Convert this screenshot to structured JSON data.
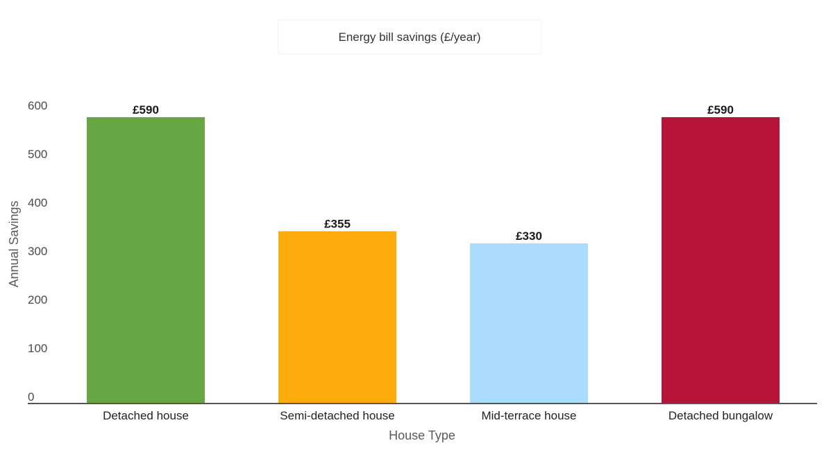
{
  "chart_data": {
    "type": "bar",
    "title": "Energy bill savings (£/year)",
    "xlabel": "House Type",
    "ylabel": "Annual Savings",
    "categories": [
      "Detached house",
      "Semi-detached house",
      "Mid-terrace house",
      "Detached bungalow"
    ],
    "values": [
      590,
      355,
      330,
      590
    ],
    "data_labels": [
      "£590",
      "£355",
      "£330",
      "£590"
    ],
    "colors": [
      "#66a644",
      "#fdab0d",
      "#abdcfd",
      "#b71338"
    ],
    "ylim": [
      0,
      600
    ],
    "yticks": [
      0,
      100,
      200,
      300,
      400,
      500,
      600
    ],
    "grid": false,
    "legend": "none"
  }
}
